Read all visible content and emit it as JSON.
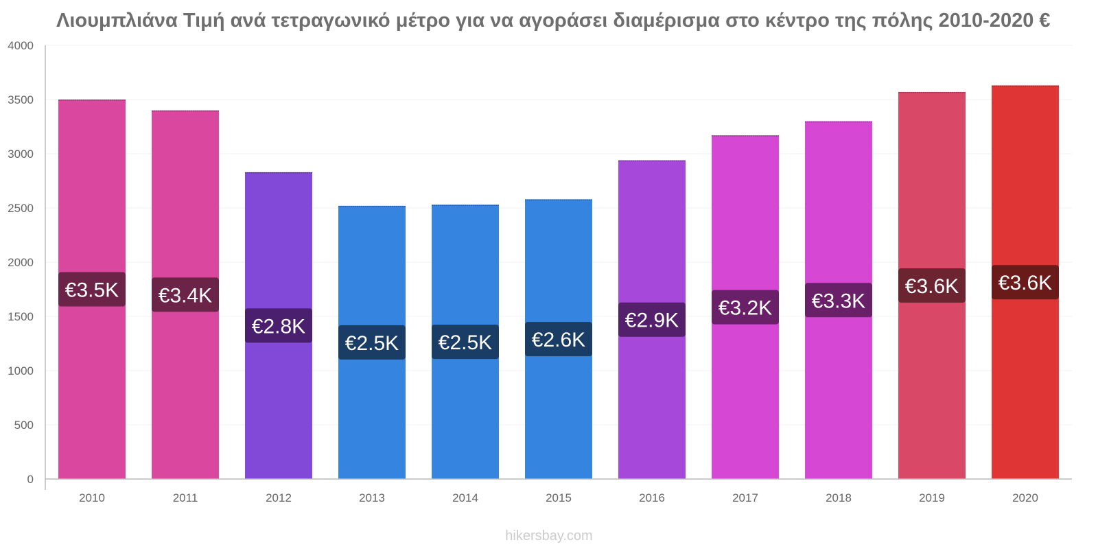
{
  "chart_data": {
    "type": "bar",
    "title": "Λιουμπλιάνα Τιμή ανά τετραγωνικό μέτρο για να αγοράσει διαμέρισμα στο κέντρο της πόλης 2010-2020 €",
    "categories": [
      "2010",
      "2011",
      "2012",
      "2013",
      "2014",
      "2015",
      "2016",
      "2017",
      "2018",
      "2019",
      "2020"
    ],
    "values": [
      3500,
      3400,
      2830,
      2520,
      2530,
      2580,
      2940,
      3170,
      3300,
      3570,
      3630
    ],
    "data_labels": [
      "€3.5K",
      "€3.4K",
      "€2.8K",
      "€2.5K",
      "€2.5K",
      "€2.6K",
      "€2.9K",
      "€3.2K",
      "€3.3K",
      "€3.6K",
      "€3.6K"
    ],
    "bar_colors": [
      "#d9489e",
      "#d9489e",
      "#8249d9",
      "#3584e0",
      "#3584e0",
      "#3584e0",
      "#a648d9",
      "#d648d4",
      "#d648d4",
      "#d94866",
      "#e03535"
    ],
    "label_bg_colors": [
      "#6b2448",
      "#6b2448",
      "#4a1f6e",
      "#1a3d66",
      "#1a3d66",
      "#1a3d66",
      "#55206b",
      "#6a2068",
      "#6a2068",
      "#6b2430",
      "#6b1a1a"
    ],
    "yticks": [
      "0",
      "500",
      "1000",
      "1500",
      "2000",
      "2500",
      "3000",
      "3500",
      "4000"
    ],
    "ylim": [
      0,
      4000
    ],
    "xlabel": "",
    "ylabel": "",
    "grid": true,
    "legend": "none"
  },
  "watermark": "hikersbay.com"
}
